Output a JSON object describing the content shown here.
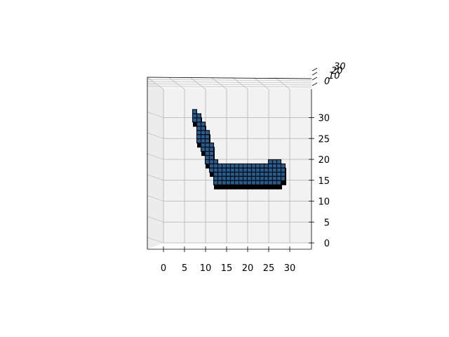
{
  "chart_data": {
    "type": "voxel-3d",
    "title": "",
    "xlabel": "",
    "ylabel": "",
    "zlabel": "",
    "grid": true,
    "colors": {
      "pane": "#f2f2f2",
      "grid": "#b0b0b0",
      "face": "#1f5f94",
      "edge": "#000000"
    },
    "x_ticks": [
      "0",
      "5",
      "10",
      "15",
      "20",
      "25",
      "30"
    ],
    "z_ticks": [
      "0",
      "5",
      "10",
      "15",
      "20",
      "25",
      "30"
    ],
    "y_ticks": [
      "0",
      "10",
      "20",
      "30"
    ],
    "xlim": [
      -3,
      35
    ],
    "zlim": [
      -2,
      35
    ],
    "voxels": [
      [
        7,
        31
      ],
      [
        7,
        30
      ],
      [
        8,
        30
      ],
      [
        7,
        29
      ],
      [
        8,
        29
      ],
      [
        8,
        28
      ],
      [
        9,
        28
      ],
      [
        8,
        27
      ],
      [
        9,
        27
      ],
      [
        8,
        26
      ],
      [
        9,
        26
      ],
      [
        10,
        26
      ],
      [
        8,
        25
      ],
      [
        9,
        25
      ],
      [
        10,
        25
      ],
      [
        8,
        24
      ],
      [
        9,
        24
      ],
      [
        10,
        24
      ],
      [
        9,
        23
      ],
      [
        10,
        23
      ],
      [
        11,
        23
      ],
      [
        9,
        22
      ],
      [
        10,
        22
      ],
      [
        11,
        22
      ],
      [
        10,
        21
      ],
      [
        11,
        21
      ],
      [
        10,
        20
      ],
      [
        11,
        20
      ],
      [
        10,
        19
      ],
      [
        11,
        19
      ],
      [
        12,
        19
      ],
      [
        11,
        18
      ],
      [
        12,
        18
      ],
      [
        13,
        18
      ],
      [
        14,
        18
      ],
      [
        15,
        18
      ],
      [
        16,
        18
      ],
      [
        17,
        18
      ],
      [
        18,
        18
      ],
      [
        19,
        18
      ],
      [
        20,
        18
      ],
      [
        21,
        18
      ],
      [
        22,
        18
      ],
      [
        23,
        18
      ],
      [
        24,
        18
      ],
      [
        25,
        18
      ],
      [
        26,
        18
      ],
      [
        27,
        18
      ],
      [
        11,
        17
      ],
      [
        12,
        17
      ],
      [
        13,
        17
      ],
      [
        14,
        17
      ],
      [
        15,
        17
      ],
      [
        16,
        17
      ],
      [
        17,
        17
      ],
      [
        18,
        17
      ],
      [
        19,
        17
      ],
      [
        20,
        17
      ],
      [
        21,
        17
      ],
      [
        22,
        17
      ],
      [
        23,
        17
      ],
      [
        24,
        17
      ],
      [
        25,
        17
      ],
      [
        26,
        17
      ],
      [
        27,
        17
      ],
      [
        12,
        16
      ],
      [
        13,
        16
      ],
      [
        14,
        16
      ],
      [
        15,
        16
      ],
      [
        16,
        16
      ],
      [
        17,
        16
      ],
      [
        18,
        16
      ],
      [
        19,
        16
      ],
      [
        20,
        16
      ],
      [
        21,
        16
      ],
      [
        22,
        16
      ],
      [
        23,
        16
      ],
      [
        24,
        16
      ],
      [
        25,
        16
      ],
      [
        26,
        16
      ],
      [
        27,
        16
      ],
      [
        12,
        15
      ],
      [
        13,
        15
      ],
      [
        14,
        15
      ],
      [
        15,
        15
      ],
      [
        16,
        15
      ],
      [
        17,
        15
      ],
      [
        18,
        15
      ],
      [
        19,
        15
      ],
      [
        20,
        15
      ],
      [
        21,
        15
      ],
      [
        22,
        15
      ],
      [
        23,
        15
      ],
      [
        24,
        15
      ],
      [
        25,
        15
      ],
      [
        26,
        15
      ],
      [
        27,
        15
      ],
      [
        25,
        19
      ],
      [
        26,
        19
      ],
      [
        27,
        19
      ],
      [
        28,
        18
      ],
      [
        28,
        17
      ],
      [
        28,
        16
      ],
      [
        28,
        15
      ],
      [
        12,
        14
      ],
      [
        13,
        14
      ],
      [
        14,
        14
      ],
      [
        15,
        14
      ],
      [
        16,
        14
      ],
      [
        17,
        14
      ],
      [
        18,
        14
      ],
      [
        19,
        14
      ],
      [
        20,
        14
      ],
      [
        21,
        14
      ],
      [
        22,
        14
      ],
      [
        23,
        14
      ],
      [
        24,
        14
      ],
      [
        25,
        14
      ],
      [
        26,
        14
      ],
      [
        27,
        14
      ]
    ]
  }
}
